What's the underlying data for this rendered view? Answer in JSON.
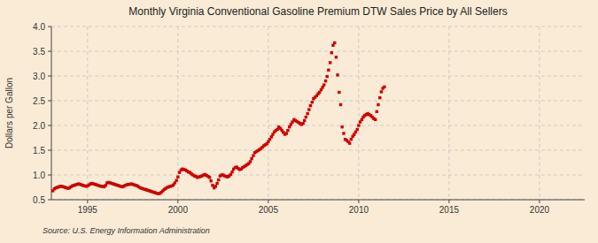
{
  "chart_data": {
    "type": "scatter",
    "title": "Monthly Virginia Conventional Gasoline Premium DTW Sales Price by All Sellers",
    "ylabel": "Dollars per Gallon",
    "source": "Source: U.S. Energy Information Administration",
    "color": "#cc0000",
    "marker": "square",
    "grid": true,
    "xlim": [
      1993.0,
      2022.5
    ],
    "ylim": [
      0.5,
      4.0
    ],
    "xticks": [
      1995,
      2000,
      2005,
      2010,
      2015,
      2020
    ],
    "yticks": [
      0.5,
      {
        "value": 1.0,
        "label": "1.0"
      },
      1.5,
      {
        "value": 2.0,
        "label": "2.0"
      },
      2.5,
      {
        "value": 3.0,
        "label": "3.0"
      },
      3.5,
      {
        "value": 4.0,
        "label": "4.0"
      }
    ],
    "x": [
      1993.08,
      1993.17,
      1993.25,
      1993.33,
      1993.42,
      1993.5,
      1993.58,
      1993.67,
      1993.75,
      1993.83,
      1993.92,
      1994.0,
      1994.08,
      1994.17,
      1994.25,
      1994.33,
      1994.42,
      1994.5,
      1994.58,
      1994.67,
      1994.75,
      1994.83,
      1994.92,
      1995.0,
      1995.08,
      1995.17,
      1995.25,
      1995.33,
      1995.42,
      1995.5,
      1995.58,
      1995.67,
      1995.75,
      1995.83,
      1995.92,
      1996.0,
      1996.08,
      1996.17,
      1996.25,
      1996.33,
      1996.42,
      1996.5,
      1996.58,
      1996.67,
      1996.75,
      1996.83,
      1996.92,
      1997.0,
      1997.08,
      1997.17,
      1997.25,
      1997.33,
      1997.42,
      1997.5,
      1997.58,
      1997.67,
      1997.75,
      1997.83,
      1997.92,
      1998.0,
      1998.08,
      1998.17,
      1998.25,
      1998.33,
      1998.42,
      1998.5,
      1998.58,
      1998.67,
      1998.75,
      1998.83,
      1998.92,
      1999.0,
      1999.08,
      1999.17,
      1999.25,
      1999.33,
      1999.42,
      1999.5,
      1999.58,
      1999.67,
      1999.75,
      1999.83,
      1999.92,
      2000.0,
      2000.08,
      2000.17,
      2000.25,
      2000.33,
      2000.42,
      2000.5,
      2000.58,
      2000.67,
      2000.75,
      2000.83,
      2000.92,
      2001.0,
      2001.08,
      2001.17,
      2001.25,
      2001.33,
      2001.42,
      2001.5,
      2001.58,
      2001.67,
      2001.75,
      2001.83,
      2001.92,
      2002.0,
      2002.08,
      2002.17,
      2002.25,
      2002.33,
      2002.42,
      2002.5,
      2002.58,
      2002.67,
      2002.75,
      2002.83,
      2002.92,
      2003.0,
      2003.08,
      2003.17,
      2003.25,
      2003.33,
      2003.42,
      2003.5,
      2003.58,
      2003.67,
      2003.75,
      2003.83,
      2003.92,
      2004.0,
      2004.08,
      2004.17,
      2004.25,
      2004.33,
      2004.42,
      2004.5,
      2004.58,
      2004.67,
      2004.75,
      2004.83,
      2004.92,
      2005.0,
      2005.08,
      2005.17,
      2005.25,
      2005.33,
      2005.42,
      2005.5,
      2005.58,
      2005.67,
      2005.75,
      2005.83,
      2005.92,
      2006.0,
      2006.08,
      2006.17,
      2006.25,
      2006.33,
      2006.42,
      2006.5,
      2006.58,
      2006.67,
      2006.75,
      2006.83,
      2006.92,
      2007.0,
      2007.08,
      2007.17,
      2007.25,
      2007.33,
      2007.42,
      2007.5,
      2007.58,
      2007.67,
      2007.75,
      2007.83,
      2007.92,
      2008.0,
      2008.08,
      2008.17,
      2008.25,
      2008.33,
      2008.42,
      2008.5,
      2008.58,
      2008.67,
      2008.75,
      2008.83,
      2008.92,
      2009.0,
      2009.08,
      2009.17,
      2009.25,
      2009.33,
      2009.42,
      2009.5,
      2009.58,
      2009.67,
      2009.75,
      2009.83,
      2009.92,
      2010.0,
      2010.08,
      2010.17,
      2010.25,
      2010.33,
      2010.42,
      2010.5,
      2010.58,
      2010.67,
      2010.75,
      2010.83,
      2010.92,
      2011.0,
      2011.08,
      2011.17,
      2011.25,
      2011.33,
      2011.42
    ],
    "values": [
      0.68,
      0.72,
      0.74,
      0.75,
      0.76,
      0.77,
      0.77,
      0.76,
      0.75,
      0.74,
      0.73,
      0.74,
      0.76,
      0.78,
      0.79,
      0.8,
      0.81,
      0.82,
      0.81,
      0.8,
      0.79,
      0.78,
      0.77,
      0.78,
      0.8,
      0.82,
      0.83,
      0.82,
      0.81,
      0.8,
      0.79,
      0.78,
      0.77,
      0.77,
      0.76,
      0.79,
      0.84,
      0.85,
      0.84,
      0.83,
      0.82,
      0.81,
      0.8,
      0.79,
      0.78,
      0.77,
      0.76,
      0.77,
      0.79,
      0.8,
      0.81,
      0.81,
      0.82,
      0.81,
      0.8,
      0.79,
      0.78,
      0.76,
      0.74,
      0.73,
      0.72,
      0.71,
      0.7,
      0.69,
      0.68,
      0.67,
      0.66,
      0.65,
      0.64,
      0.63,
      0.62,
      0.63,
      0.65,
      0.68,
      0.71,
      0.73,
      0.75,
      0.76,
      0.77,
      0.78,
      0.8,
      0.84,
      0.89,
      0.96,
      1.05,
      1.1,
      1.12,
      1.11,
      1.1,
      1.08,
      1.06,
      1.05,
      1.02,
      1.0,
      0.98,
      0.97,
      0.95,
      0.96,
      0.97,
      0.98,
      1.0,
      1.01,
      0.99,
      0.97,
      0.95,
      0.88,
      0.79,
      0.74,
      0.77,
      0.83,
      0.9,
      0.98,
      1.0,
      1.0,
      0.98,
      0.97,
      0.96,
      0.98,
      1.01,
      1.06,
      1.12,
      1.15,
      1.16,
      1.13,
      1.11,
      1.12,
      1.15,
      1.17,
      1.19,
      1.21,
      1.23,
      1.27,
      1.33,
      1.39,
      1.45,
      1.47,
      1.49,
      1.51,
      1.53,
      1.56,
      1.59,
      1.61,
      1.63,
      1.67,
      1.72,
      1.77,
      1.82,
      1.87,
      1.9,
      1.92,
      1.97,
      1.94,
      1.9,
      1.86,
      1.82,
      1.84,
      1.9,
      1.97,
      2.02,
      2.07,
      2.12,
      2.1,
      2.08,
      2.06,
      2.04,
      2.02,
      2.04,
      2.1,
      2.17,
      2.24,
      2.32,
      2.4,
      2.47,
      2.54,
      2.57,
      2.6,
      2.64,
      2.67,
      2.72,
      2.77,
      2.82,
      2.9,
      2.99,
      3.12,
      3.27,
      3.47,
      3.62,
      3.67,
      3.38,
      3.02,
      2.67,
      2.42,
      1.97,
      1.84,
      1.72,
      1.7,
      1.67,
      1.64,
      1.72,
      1.78,
      1.82,
      1.87,
      1.92,
      2.0,
      2.07,
      2.12,
      2.17,
      2.2,
      2.22,
      2.24,
      2.22,
      2.2,
      2.17,
      2.14,
      2.12,
      2.28,
      2.42,
      2.56,
      2.68,
      2.75,
      2.78
    ]
  }
}
